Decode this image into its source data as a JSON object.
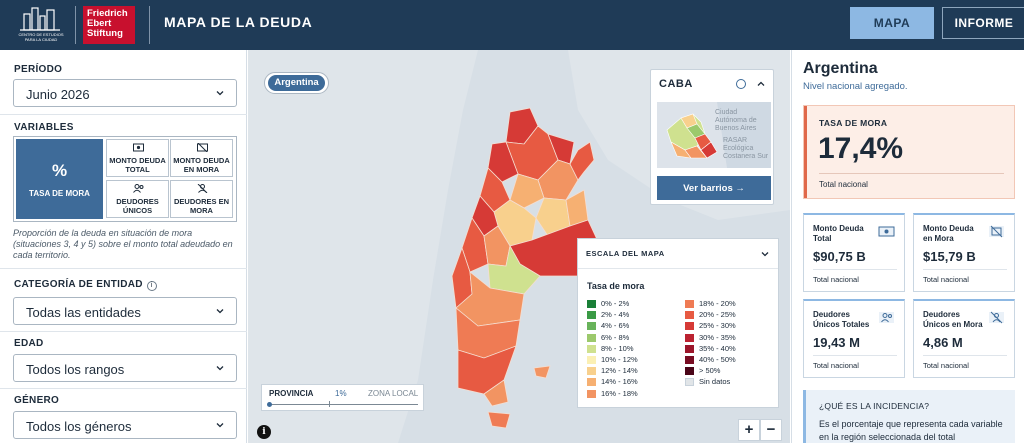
{
  "header": {
    "logo_city_caption": "CENTRO DE ESTUDIOS PARA LA CIUDAD",
    "logo_fes": [
      "Friedrich",
      "Ebert",
      "Stiftung"
    ],
    "title": "MAPA DE LA DEUDA",
    "nav": {
      "mapa": "MAPA",
      "informe": "INFORME"
    }
  },
  "sidebar": {
    "periodo": {
      "label": "PERÍODO",
      "value": "Junio 2026"
    },
    "variables": {
      "label": "VARIABLES",
      "main": {
        "symbol": "%",
        "label": "TASA DE MORA"
      },
      "items": [
        {
          "label": "MONTO DEUDA TOTAL",
          "icon": "money-icon"
        },
        {
          "label": "MONTO DEUDA EN MORA",
          "icon": "money-off-icon"
        },
        {
          "label": "DEUDORES ÚNICOS",
          "icon": "people-icon"
        },
        {
          "label": "DEUDORES EN MORA",
          "icon": "person-off-icon"
        }
      ],
      "description": "Proporción de la deuda en situación de mora (situaciones 3, 4 y 5) sobre el monto total adeudado en cada territorio."
    },
    "categoria": {
      "label": "CATEGORÍA DE ENTIDAD",
      "value": "Todas las entidades"
    },
    "edad": {
      "label": "EDAD",
      "value": "Todos los rangos"
    },
    "genero": {
      "label": "GÉNERO",
      "value": "Todos los géneros"
    }
  },
  "map": {
    "country_pill": "Argentina",
    "caba": {
      "title": "CABA",
      "button": "Ver barrios  →",
      "map_labels": [
        "Ciudad",
        "Autónoma de",
        "Buenos Aires",
        "RASAR",
        "Ecológica",
        "Costanera Sur"
      ]
    },
    "legend": {
      "header": "ESCALA DEL MAPA",
      "title": "Tasa de mora",
      "items": [
        {
          "label": "0% - 2%",
          "color": "#1a7f37"
        },
        {
          "label": "2% - 4%",
          "color": "#3a9a45"
        },
        {
          "label": "4% - 6%",
          "color": "#68b35a"
        },
        {
          "label": "6% - 8%",
          "color": "#9cc96c"
        },
        {
          "label": "8% - 10%",
          "color": "#cfe18f"
        },
        {
          "label": "10% - 12%",
          "color": "#fbf0b4"
        },
        {
          "label": "12% - 14%",
          "color": "#f8d08d"
        },
        {
          "label": "14% - 16%",
          "color": "#f6b072"
        },
        {
          "label": "16% - 18%",
          "color": "#f29462"
        },
        {
          "label": "18% - 20%",
          "color": "#ef7b54"
        },
        {
          "label": "20% - 25%",
          "color": "#e75a42"
        },
        {
          "label": "25% - 30%",
          "color": "#d63a36"
        },
        {
          "label": "30% - 35%",
          "color": "#bb2231"
        },
        {
          "label": "35% - 40%",
          "color": "#9c152a"
        },
        {
          "label": "40% - 50%",
          "color": "#780c22"
        },
        {
          "label": "> 50%",
          "color": "#4a0518"
        },
        {
          "label": "Sin datos",
          "color": "#e1e5e8"
        }
      ]
    },
    "slider": {
      "left": "PROVINCIA",
      "value": "1%",
      "right": "ZONA LOCAL"
    },
    "info": "i",
    "zoom_in": "+",
    "zoom_out": "−"
  },
  "summary": {
    "title": "Argentina",
    "subtitle": "Nivel nacional agregado.",
    "main": {
      "label": "TASA DE MORA",
      "value": "17,4%",
      "note": "Total nacional"
    },
    "cards": [
      {
        "label": "Monto Deuda Total",
        "value": "$90,75 B",
        "note": "Total nacional",
        "icon": "money-icon"
      },
      {
        "label": "Monto Deuda en Mora",
        "value": "$15,79 B",
        "note": "Total nacional",
        "icon": "money-off-icon"
      },
      {
        "label": "Deudores Únicos Totales",
        "value": "19,43 M",
        "note": "Total nacional",
        "icon": "people-icon"
      },
      {
        "label": "Deudores Únicos en Mora",
        "value": "4,86 M",
        "note": "Total nacional",
        "icon": "person-off-icon"
      }
    ],
    "faq": {
      "question": "¿QUÉ ES LA INCIDENCIA?",
      "text": "Es el porcentaje que representa cada variable en la región seleccionada del total"
    }
  }
}
